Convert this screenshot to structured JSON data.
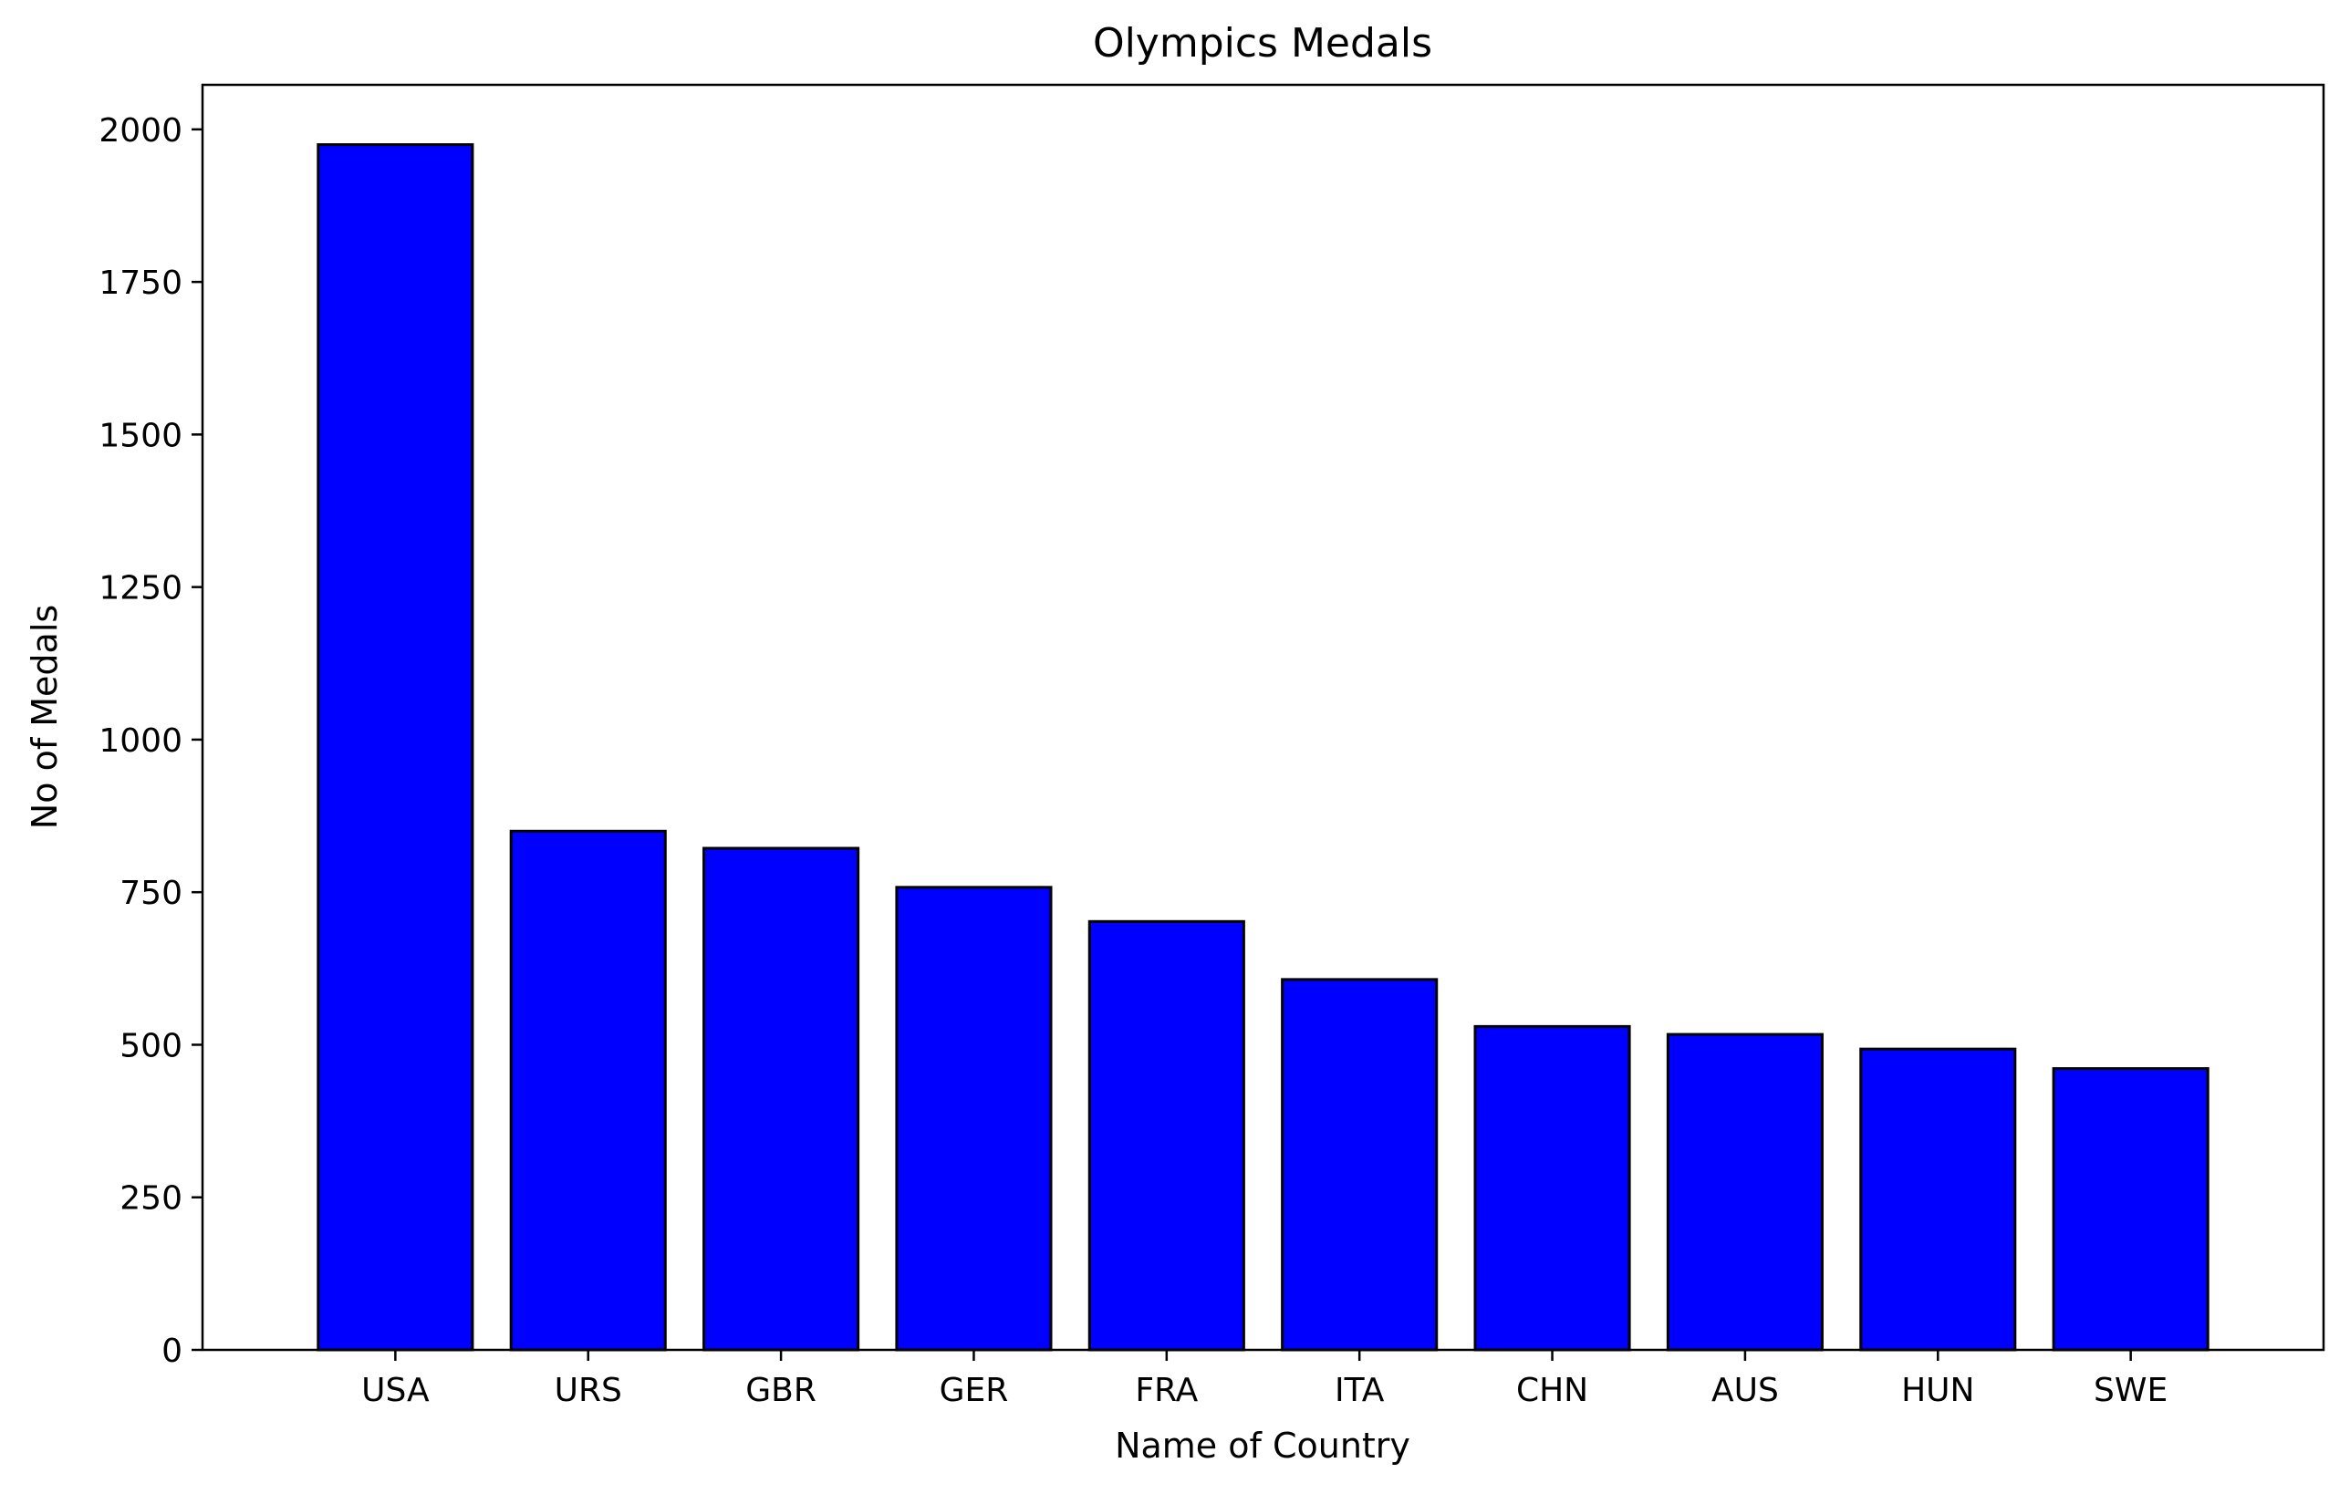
{
  "chart_data": {
    "type": "bar",
    "title": "Olympics Medals",
    "xlabel": "Name of Country",
    "ylabel": "No of Medals",
    "categories": [
      "USA",
      "URS",
      "GBR",
      "GER",
      "FRA",
      "ITA",
      "CHN",
      "AUS",
      "HUN",
      "SWE"
    ],
    "values": [
      1975,
      850,
      822,
      758,
      702,
      607,
      530,
      517,
      493,
      461
    ],
    "ylim": [
      0,
      2073
    ],
    "yticks": [
      0,
      250,
      500,
      750,
      1000,
      1250,
      1500,
      1750,
      2000
    ],
    "grid": false,
    "legend": "none",
    "colors": {
      "bar_fill": "#0000ff",
      "bar_edge": "#000000",
      "axes": "#000000",
      "background": "#ffffff"
    }
  }
}
